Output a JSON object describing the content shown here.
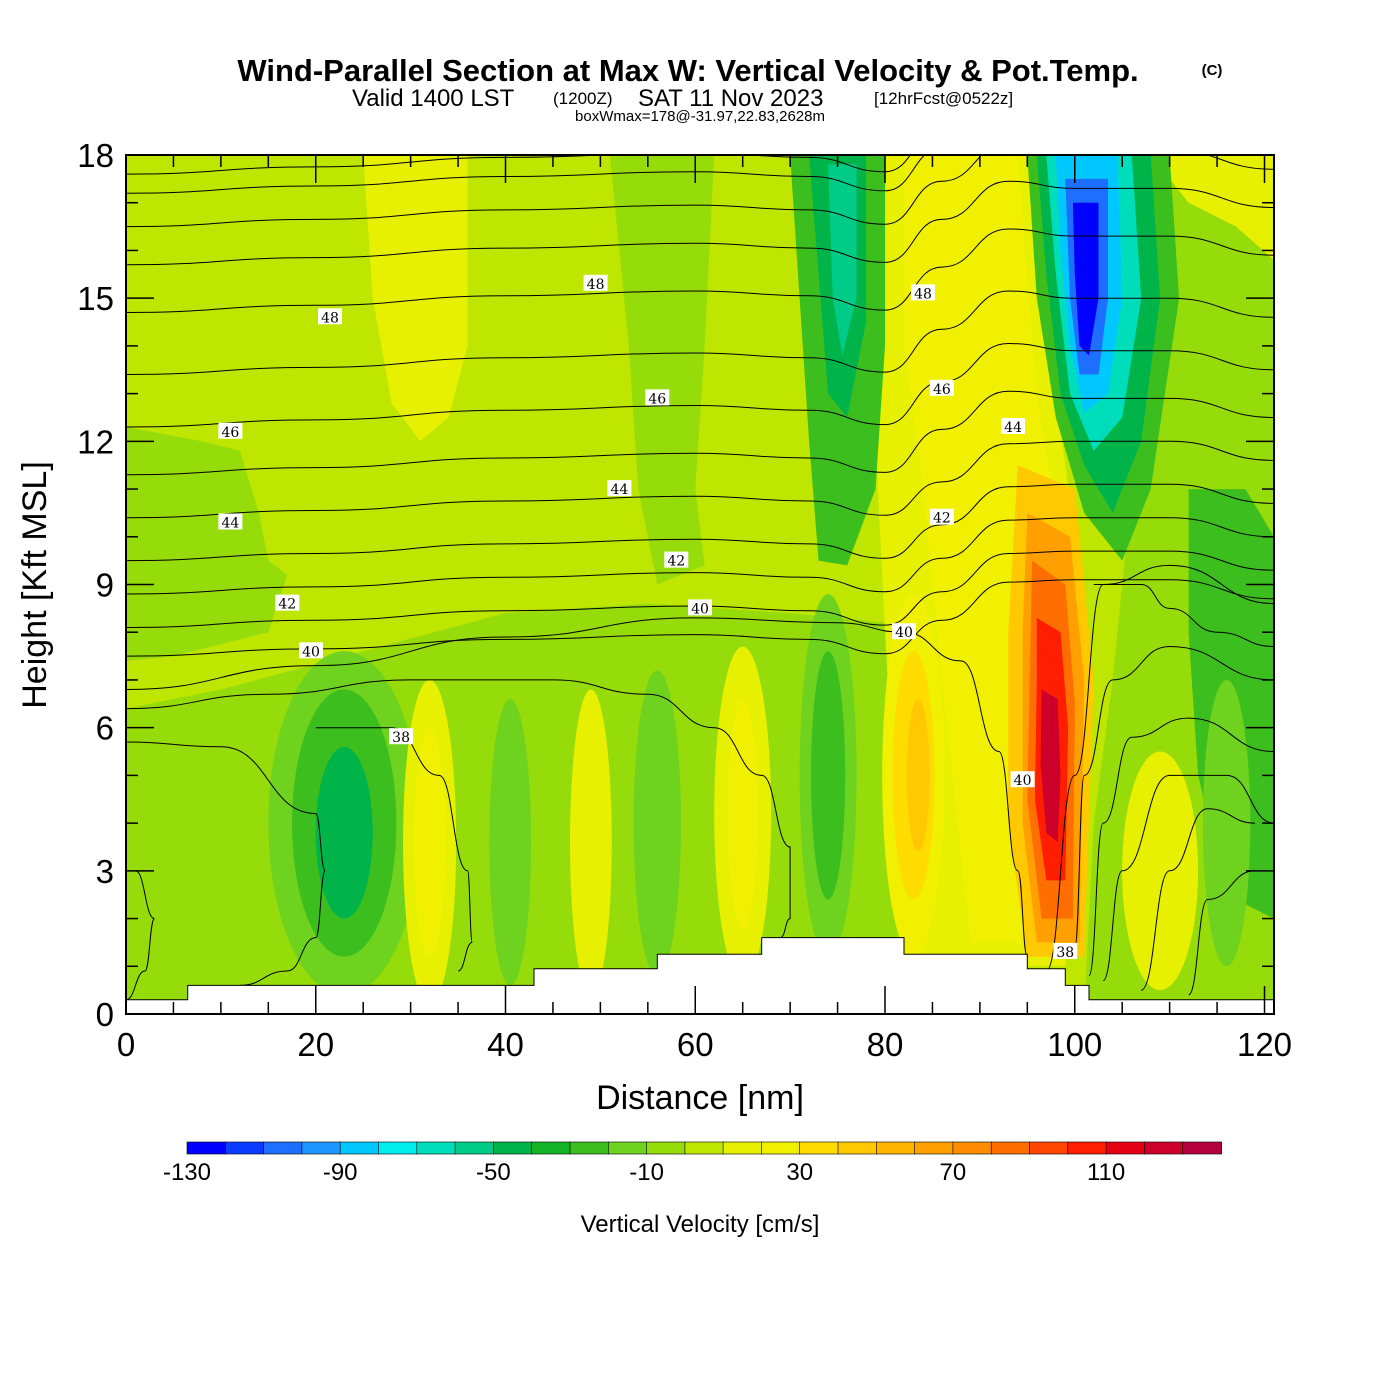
{
  "title": {
    "main": "Wind-Parallel Section at Max W: Vertical Velocity & Pot.Temp.",
    "copyright": "(C)",
    "valid_prefix": "Valid 1400 LST",
    "valid_utc": "(1200Z)",
    "valid_date": "SAT 11 Nov 2023",
    "forecast": "[12hrFcst@0522z]",
    "boxinfo": "boxWmax=178@-31.97,22.83,2628m"
  },
  "chart_data": {
    "type": "heatmap",
    "title": "Wind-Parallel Section at Max W: Vertical Velocity & Pot.Temp.",
    "xlabel": "Distance [nm]",
    "ylabel": "Height [Kft MSL]",
    "xlim": [
      0,
      121
    ],
    "ylim": [
      0,
      18
    ],
    "x_ticks": [
      0,
      20,
      40,
      60,
      80,
      100,
      120
    ],
    "y_ticks": [
      0,
      3,
      6,
      9,
      12,
      15,
      18
    ],
    "colorbar": {
      "label": "Vertical Velocity [cm/s]",
      "tick_labels": [
        "-130",
        "-90",
        "-50",
        "-10",
        "30",
        "70",
        "110"
      ],
      "levels": [
        -130,
        -120,
        -110,
        -100,
        -90,
        -80,
        -70,
        -60,
        -50,
        -40,
        -30,
        -20,
        -10,
        0,
        10,
        20,
        30,
        40,
        50,
        60,
        70,
        80,
        90,
        100,
        110,
        120,
        130,
        140
      ],
      "colors": [
        "#0000ff",
        "#0a3cff",
        "#1e6eff",
        "#1e96ff",
        "#00c8ff",
        "#00eeee",
        "#00ddbb",
        "#00cc88",
        "#00b44a",
        "#14b428",
        "#3cbe1e",
        "#6ed21e",
        "#96dc0a",
        "#bee600",
        "#e6f000",
        "#f0f000",
        "#ffdc00",
        "#ffc800",
        "#ffb400",
        "#ffa000",
        "#ff8c00",
        "#ff6e00",
        "#ff4600",
        "#ff1e00",
        "#e60014",
        "#cc0028",
        "#b4003c"
      ]
    },
    "features": [
      {
        "name": "downdraft core",
        "x": 100,
        "y": 14.5,
        "w": -130
      },
      {
        "name": "updraft core",
        "x": 96,
        "y": 5.5,
        "w": 120
      },
      {
        "name": "gravity wave downdraft",
        "x": 23,
        "y": 3.8,
        "w": -45
      },
      {
        "name": "gravity wave updraft",
        "x": 32,
        "y": 3.5,
        "w": 25
      },
      {
        "name": "gravity wave updraft",
        "x": 49,
        "y": 3.5,
        "w": 20
      },
      {
        "name": "gravity wave updraft",
        "x": 65,
        "y": 4,
        "w": 25
      },
      {
        "name": "gravity wave downdraft",
        "x": 74,
        "y": 5,
        "w": -30
      },
      {
        "name": "updraft",
        "x": 83,
        "y": 5,
        "w": 50
      },
      {
        "name": "upper downdraft",
        "x": 76,
        "y": 16,
        "w": -50
      }
    ],
    "theta_contour_labels": [
      {
        "text": "48",
        "x": 21.5,
        "y": 14.6
      },
      {
        "text": "48",
        "x": 49.5,
        "y": 15.3
      },
      {
        "text": "48",
        "x": 84,
        "y": 15.1
      },
      {
        "text": "46",
        "x": 11,
        "y": 12.2
      },
      {
        "text": "46",
        "x": 56,
        "y": 12.9
      },
      {
        "text": "46",
        "x": 86,
        "y": 13.1
      },
      {
        "text": "44",
        "x": 93.5,
        "y": 12.3
      },
      {
        "text": "44",
        "x": 11,
        "y": 10.3
      },
      {
        "text": "44",
        "x": 52,
        "y": 11
      },
      {
        "text": "42",
        "x": 17,
        "y": 8.6
      },
      {
        "text": "42",
        "x": 58,
        "y": 9.5
      },
      {
        "text": "42",
        "x": 86,
        "y": 10.4
      },
      {
        "text": "40",
        "x": 19.5,
        "y": 7.6
      },
      {
        "text": "40",
        "x": 60.5,
        "y": 8.5
      },
      {
        "text": "40",
        "x": 82,
        "y": 8
      },
      {
        "text": "40",
        "x": 94.5,
        "y": 4.9
      },
      {
        "text": "38",
        "x": 29,
        "y": 5.8
      },
      {
        "text": "38",
        "x": 99,
        "y": 1.3
      }
    ],
    "terrain": [
      [
        0,
        0.3
      ],
      [
        6.5,
        0.3
      ],
      [
        6.5,
        0.6
      ],
      [
        43,
        0.6
      ],
      [
        43,
        0.95
      ],
      [
        56,
        0.95
      ],
      [
        56,
        1.25
      ],
      [
        67,
        1.25
      ],
      [
        67,
        1.6
      ],
      [
        82,
        1.6
      ],
      [
        82,
        1.25
      ],
      [
        95,
        1.25
      ],
      [
        95,
        0.95
      ],
      [
        99,
        0.95
      ],
      [
        99,
        0.6
      ],
      [
        101.5,
        0.6
      ],
      [
        101.5,
        0.3
      ],
      [
        121,
        0.3
      ]
    ]
  }
}
